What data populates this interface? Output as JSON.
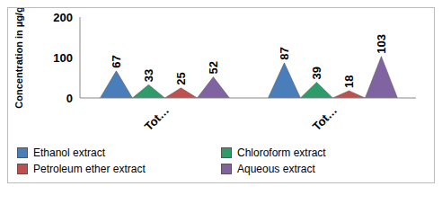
{
  "chart_data": {
    "type": "bar",
    "y_label": "Concentration in µg/g",
    "categories": [
      "Tot…",
      "Tot…"
    ],
    "series": [
      {
        "name": "Ethanol extract",
        "color": "#4a7ebb",
        "values": [
          67,
          87
        ]
      },
      {
        "name": "Chloroform extract",
        "color": "#2e9c6a",
        "values": [
          33,
          39
        ]
      },
      {
        "name": "Petroleum ether extract",
        "color": "#c0504d",
        "values": [
          25,
          18
        ]
      },
      {
        "name": "Aqueous extract",
        "color": "#8064a2",
        "values": [
          52,
          103
        ]
      }
    ],
    "ylim": [
      0,
      200
    ],
    "yticks": [
      0,
      100,
      200
    ],
    "grid": false,
    "data_labels": true,
    "legend": "bottom"
  }
}
